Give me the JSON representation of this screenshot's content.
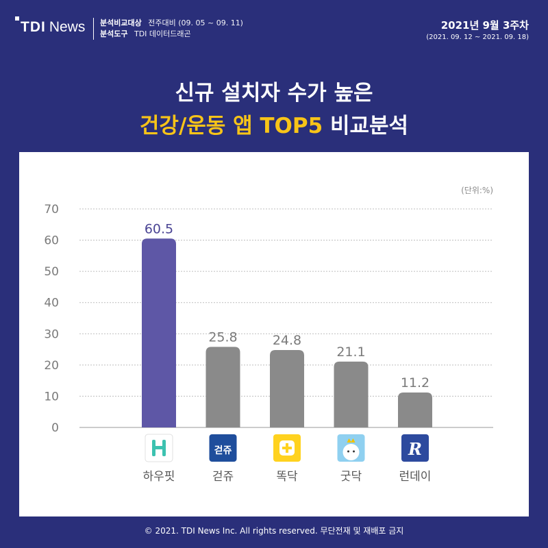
{
  "header": {
    "logo_tdi": "TDI",
    "logo_news": "News",
    "compare_label": "분석비교대상",
    "compare_value": "전주대비 (09. 05 ~ 09. 11)",
    "tool_label": "분석도구",
    "tool_value": "TDI 데이터드래곤",
    "week": "2021년 9월 3주차",
    "week_range": "(2021. 09. 12 ~ 2021. 09. 18)"
  },
  "title": {
    "line1": "신규 설치자 수가 높은",
    "line2_highlight": "건강/운동 앱 TOP5",
    "line2_rest": "비교분석"
  },
  "chart_data": {
    "type": "bar",
    "unit_note": "(단위:%)",
    "categories": [
      "하우핏",
      "걷쥬",
      "똑닥",
      "굿닥",
      "런데이"
    ],
    "values": [
      60.5,
      25.8,
      24.8,
      21.1,
      11.2
    ],
    "ylim": [
      0,
      70
    ],
    "yticks": [
      0,
      10,
      20,
      30,
      40,
      50,
      60,
      70
    ],
    "grid": true,
    "bar_colors": [
      "#5e57a6",
      "#8a8a8a",
      "#8a8a8a",
      "#8a8a8a",
      "#8a8a8a"
    ],
    "label_colors": [
      "#4a4494",
      "#7a7a7a",
      "#7a7a7a",
      "#7a7a7a",
      "#7a7a7a"
    ],
    "icons": [
      {
        "name": "howfit-app-icon",
        "bg": "#ffffff",
        "fg": "#3cc2b0",
        "glyph": "H"
      },
      {
        "name": "walkju-app-icon",
        "bg": "#1f4e9c",
        "fg": "#ffffff",
        "glyph": "걷쥬"
      },
      {
        "name": "ddocdoc-app-icon",
        "bg": "#ffd21f",
        "fg": "#ffffff",
        "glyph": "+"
      },
      {
        "name": "goodoc-app-icon",
        "bg": "#8fd0f0",
        "fg": "#ffffff",
        "glyph": "•ᴗ•"
      },
      {
        "name": "runday-app-icon",
        "bg": "#2d4a9e",
        "fg": "#ffffff",
        "glyph": "R"
      }
    ]
  },
  "footer": "© 2021. TDI News Inc. All rights reserved. 무단전재 및 재배포 금지"
}
